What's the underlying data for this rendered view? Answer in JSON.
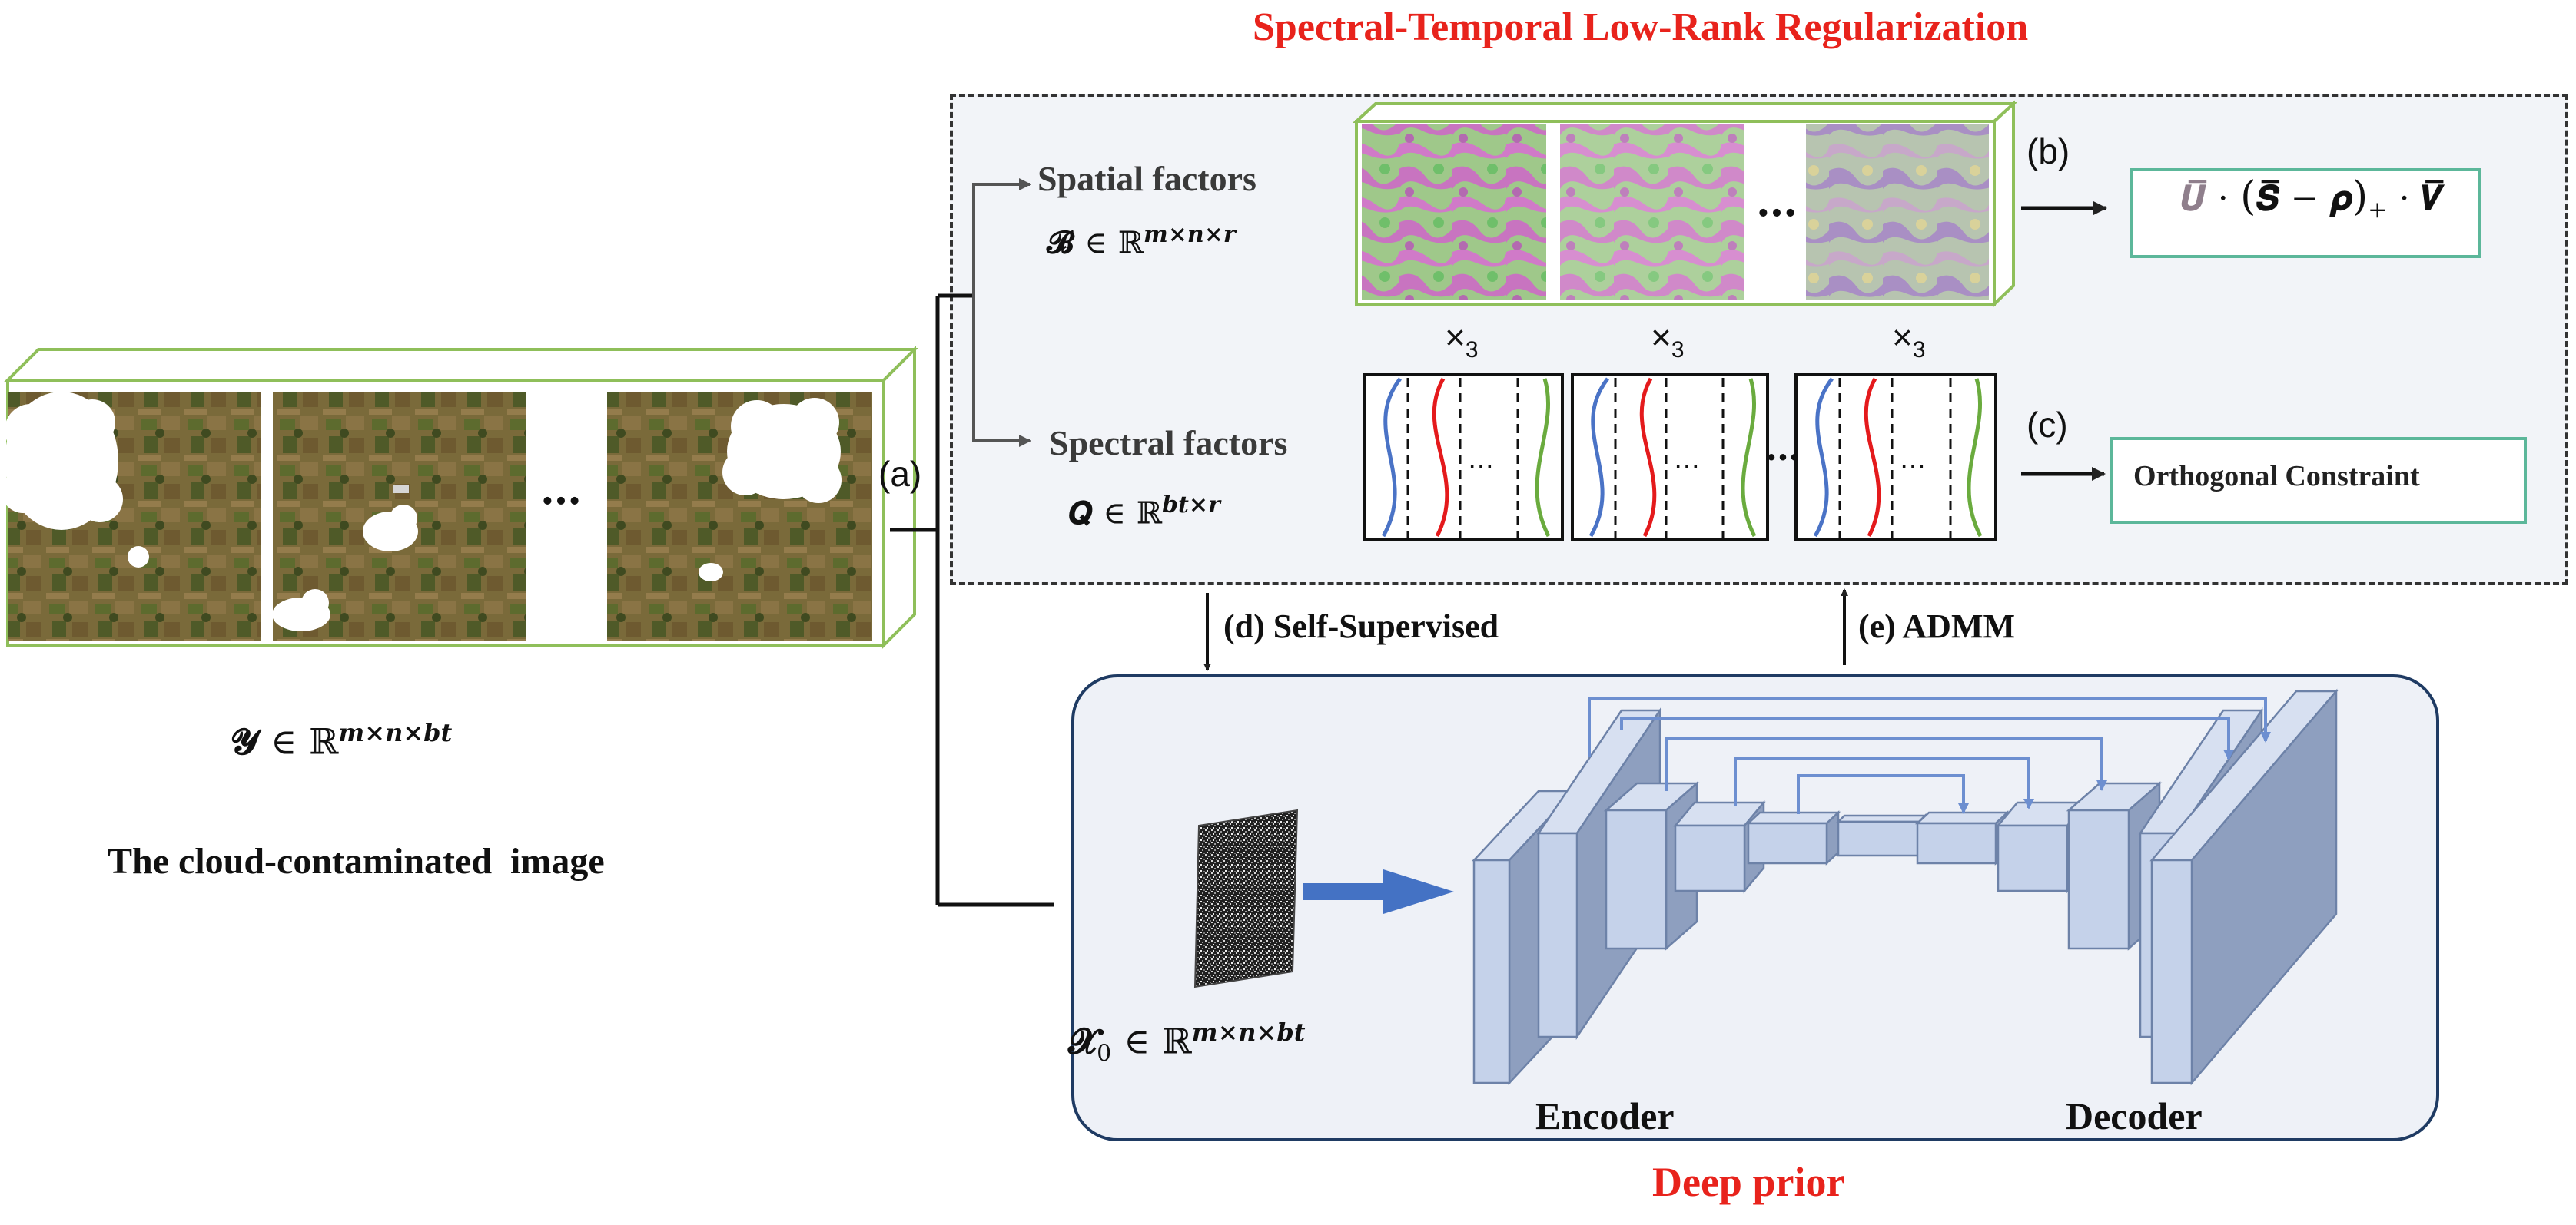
{
  "title": "Spectral-Temporal Low-Rank Regularization",
  "spatial": {
    "label": "Spatial factors",
    "symbol": "𝓑",
    "elem": "∈",
    "space": "ℝ",
    "dims": "m×n×r"
  },
  "spectral": {
    "label": "Spectral factors",
    "symbol": "𝑸",
    "elem": "∈",
    "space": "ℝ",
    "dims": "bt×r"
  },
  "mode_product": "×",
  "mode_subscript": "3",
  "ellipsis": "…",
  "ellipsis_small": "⋯",
  "step_a": "(a)",
  "step_b": "(b)",
  "step_c": "(c)",
  "step_d": "(d) Self-Supervised",
  "step_e": "(e) ADMM",
  "formula": {
    "U": "𝑼̅",
    "dot": "·",
    "open": "(",
    "S": "𝑺̅",
    "minus": "−",
    "rho": "𝝆",
    "close": ")",
    "plus": "+",
    "dot2": "·",
    "V": "𝑽̅"
  },
  "orthogonal_label": "Orthogonal Constraint",
  "input": {
    "symbol": "𝓨",
    "elem": "∈",
    "space": "ℝ",
    "dims": "m×n×bt",
    "caption": "The cloud-contaminated  image"
  },
  "noise": {
    "symbol": "𝓧",
    "sub": "0",
    "elem": "∈",
    "space": "ℝ",
    "dims": "m×n×bt"
  },
  "encoder_label": "Encoder",
  "decoder_label": "Decoder",
  "deep_prior_label": "Deep prior",
  "colors": {
    "title_red": "#e8231c",
    "frame_green": "#8fbf5a",
    "box_teal": "#5cb79a",
    "unet_blue": "#c5d2ea",
    "skip_blue": "#6d8fd0",
    "arrow_blue": "#4472c4",
    "curve_blue": "#4a73c6",
    "curve_red": "#e41a1c",
    "curve_green": "#6aab3e"
  }
}
